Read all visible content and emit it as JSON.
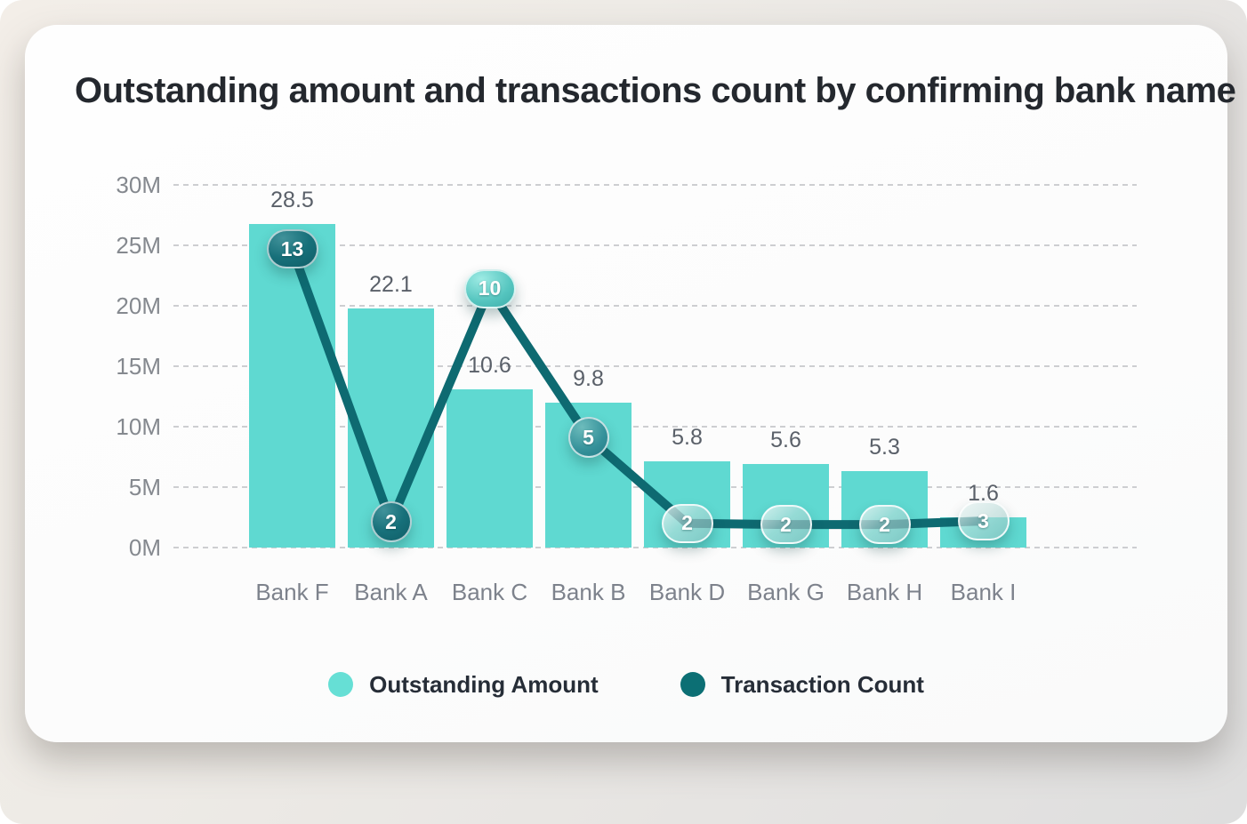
{
  "chart_data": {
    "type": "bar+line combo",
    "title": "Outstanding amount and transactions count by confirming bank name",
    "categories": [
      "Bank F",
      "Bank A",
      "Bank C",
      "Bank B",
      "Bank D",
      "Bank G",
      "Bank H",
      "Bank I"
    ],
    "series": [
      {
        "name": "Outstanding Amount",
        "type": "bar",
        "unit": "M",
        "values": [
          28.5,
          22.1,
          10.6,
          9.8,
          5.8,
          5.6,
          5.3,
          1.6
        ],
        "color": "#5fd9d1"
      },
      {
        "name": "Transaction Count",
        "type": "line",
        "values": [
          13,
          2,
          10,
          5,
          2,
          2,
          2,
          3
        ],
        "color": "#0e6a71"
      }
    ],
    "ylabel": "",
    "xlabel": "",
    "ylim": [
      0,
      30
    ],
    "yticks": [
      "30M",
      "25M",
      "20M",
      "15M",
      "10M",
      "5M",
      "0M"
    ],
    "grid": {
      "style": "dashed",
      "direction": "horizontal",
      "color": "#cdced1"
    },
    "legend_position": "bottom",
    "layout_hints": {
      "bar_display_m": [
        26.8,
        19.8,
        13.1,
        12.0,
        7.1,
        6.9,
        6.3,
        2.5
      ],
      "line_display_m": [
        24.7,
        2.1,
        21.4,
        9.1,
        2.0,
        1.9,
        1.9,
        2.2
      ],
      "marker_shapes": [
        "capsule",
        "circle",
        "capsule",
        "circle",
        "capsule",
        "capsule",
        "capsule",
        "capsule"
      ],
      "marker_variants": [
        "dark",
        "dark",
        "light",
        "medium",
        "glass",
        "glass",
        "glass",
        "glass"
      ]
    }
  },
  "legend": {
    "items": [
      {
        "label": "Outstanding Amount",
        "color": "#66dfd5"
      },
      {
        "label": "Transaction Count",
        "color": "#0c6f74"
      }
    ]
  }
}
